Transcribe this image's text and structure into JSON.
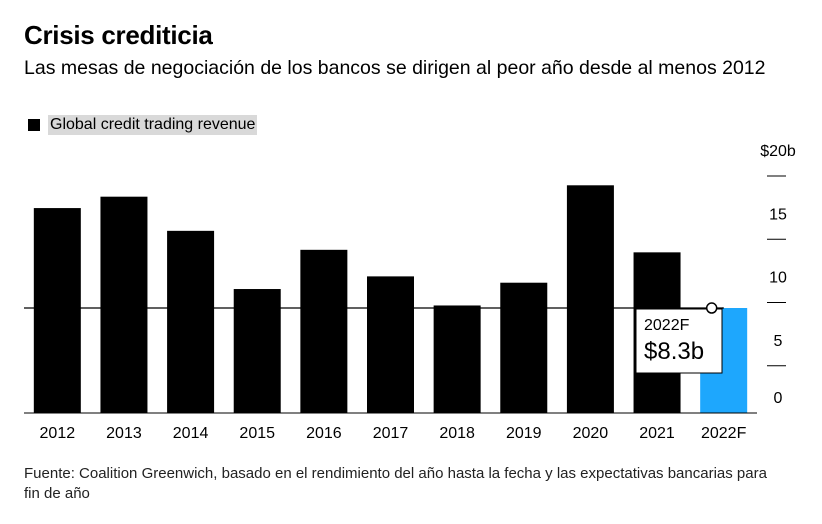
{
  "header": {
    "title": "Crisis crediticia",
    "subtitle": "Las mesas de negociación de los bancos se dirigen al peor año desde al menos 2012"
  },
  "legend": {
    "label": "Global credit trading revenue"
  },
  "chart_data": {
    "type": "bar",
    "categories": [
      "2012",
      "2013",
      "2014",
      "2015",
      "2016",
      "2017",
      "2018",
      "2019",
      "2020",
      "2021",
      "2022F"
    ],
    "series": [
      {
        "name": "Global credit trading revenue",
        "values": [
          16.2,
          17.1,
          14.4,
          9.8,
          12.9,
          10.8,
          8.5,
          10.3,
          18.0,
          12.7,
          8.3
        ]
      }
    ],
    "ylim": [
      0,
      20
    ],
    "yticks": [
      0,
      5,
      10,
      15,
      20
    ],
    "ytick_labels": [
      "0",
      "5",
      "10",
      "15",
      "$20b"
    ],
    "reference_line": 8.3,
    "annotation": {
      "category": "2022F",
      "label": "2022F",
      "value_label": "$8.3b"
    },
    "colors": {
      "bar": "#000000",
      "highlight": "#1ea7fd"
    },
    "grid": false,
    "legend_position": "top-left"
  },
  "footer": {
    "source": "Fuente: Coalition Greenwich, basado en el rendimiento del año hasta la fecha y las expectativas bancarias para fin de año"
  }
}
